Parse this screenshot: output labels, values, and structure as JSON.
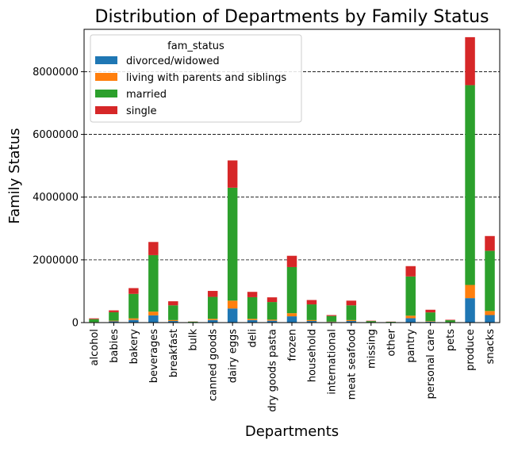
{
  "chart_data": {
    "type": "bar",
    "stacked": true,
    "title": "Distribution of Departments by Family Status",
    "xlabel": "Departments",
    "ylabel": "Family Status",
    "ylim": [
      0,
      9350000
    ],
    "yticks": [
      0,
      2000000,
      4000000,
      6000000,
      8000000
    ],
    "ytick_labels": [
      "0",
      "2000000",
      "4000000",
      "6000000",
      "8000000"
    ],
    "grid": "horizontal dashed",
    "legend": {
      "title": "fam_status",
      "placement": "top-left"
    },
    "categories": [
      "alcohol",
      "babies",
      "bakery",
      "beverages",
      "breakfast",
      "bulk",
      "canned goods",
      "dairy eggs",
      "deli",
      "dry goods pasta",
      "frozen",
      "household",
      "international",
      "meat seafood",
      "missing",
      "other",
      "pantry",
      "personal care",
      "pets",
      "produce",
      "snacks"
    ],
    "series": [
      {
        "name": "divorced/widowed",
        "color": "#1f77b4",
        "values": [
          10000,
          40000,
          85000,
          230000,
          50000,
          3000,
          80000,
          450000,
          80000,
          60000,
          200000,
          50000,
          20000,
          50000,
          5000,
          3000,
          140000,
          30000,
          10000,
          780000,
          240000
        ]
      },
      {
        "name": "living with parents and siblings",
        "color": "#ff7f0e",
        "values": [
          5000,
          20000,
          50000,
          120000,
          30000,
          2000,
          40000,
          250000,
          40000,
          35000,
          100000,
          30000,
          10000,
          30000,
          3000,
          2000,
          80000,
          15000,
          5000,
          420000,
          130000
        ]
      },
      {
        "name": "married",
        "color": "#2ca02c",
        "values": [
          95000,
          270000,
          780000,
          1800000,
          470000,
          25000,
          700000,
          3600000,
          690000,
          560000,
          1470000,
          500000,
          180000,
          470000,
          40000,
          20000,
          1250000,
          280000,
          60000,
          6370000,
          1920000
        ]
      },
      {
        "name": "single",
        "color": "#d62728",
        "values": [
          25000,
          60000,
          185000,
          420000,
          130000,
          5000,
          190000,
          870000,
          170000,
          150000,
          360000,
          140000,
          30000,
          150000,
          12000,
          5000,
          330000,
          85000,
          15000,
          1530000,
          470000
        ]
      }
    ]
  }
}
